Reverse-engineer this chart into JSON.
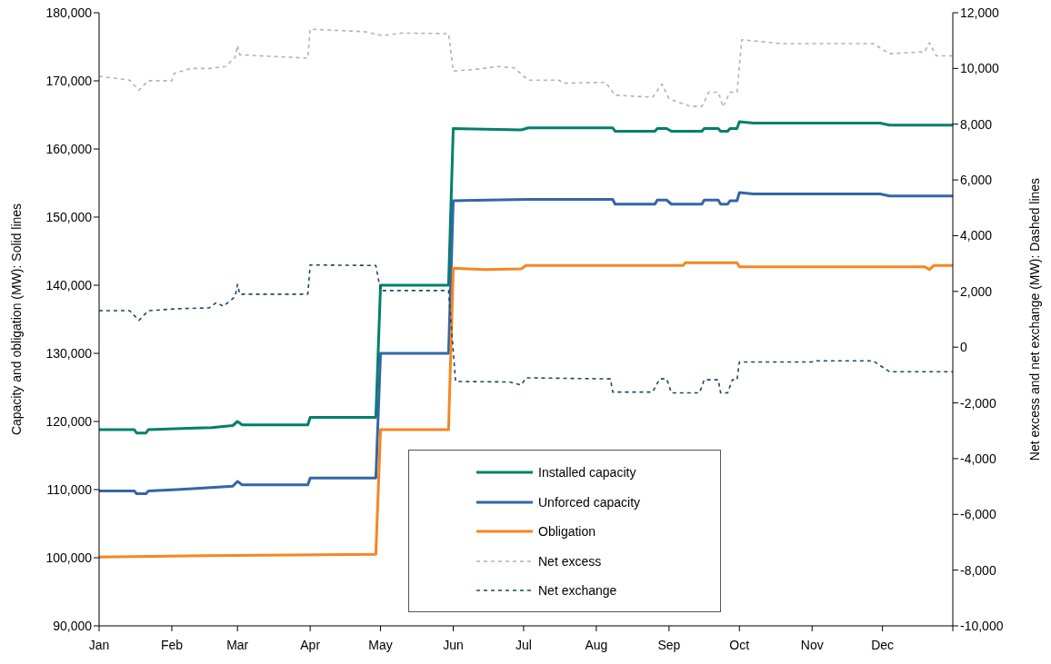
{
  "chart_data": {
    "type": "line",
    "ylabel": "Capacity and obligation (MW):  Solid lines",
    "y2label": "Net excess and net exchange (MW):  Dashed lines",
    "xlim": [
      "--01-01",
      "--12-31"
    ],
    "xticks": [
      {
        "value": "--01-01",
        "label": "Jan"
      },
      {
        "value": "--02-01",
        "label": "Feb"
      },
      {
        "value": "--03-01",
        "label": "Mar"
      },
      {
        "value": "--04-01",
        "label": "Apr"
      },
      {
        "value": "--05-01",
        "label": "May"
      },
      {
        "value": "--06-01",
        "label": "Jun"
      },
      {
        "value": "--07-01",
        "label": "Jul"
      },
      {
        "value": "--08-01",
        "label": "Aug"
      },
      {
        "value": "--09-01",
        "label": "Sep"
      },
      {
        "value": "--10-01",
        "label": "Oct"
      },
      {
        "value": "--11-01",
        "label": "Nov"
      },
      {
        "value": "--12-01",
        "label": "Dec"
      },
      {
        "value": "--12-31",
        "label": null
      }
    ],
    "ylim": [
      90000,
      180000
    ],
    "yticks": [
      {
        "value": 90000,
        "label": "90,000"
      },
      {
        "value": 100000,
        "label": "100,000"
      },
      {
        "value": 110000,
        "label": "110,000"
      },
      {
        "value": 120000,
        "label": "120,000"
      },
      {
        "value": 130000,
        "label": "130,000"
      },
      {
        "value": 140000,
        "label": "140,000"
      },
      {
        "value": 150000,
        "label": "150,000"
      },
      {
        "value": 160000,
        "label": "160,000"
      },
      {
        "value": 170000,
        "label": "170,000"
      },
      {
        "value": 180000,
        "label": "180,000"
      }
    ],
    "y2lim": [
      -10000,
      12000
    ],
    "y2ticks": [
      {
        "value": -10000,
        "label": "-10,000"
      },
      {
        "value": -8000,
        "label": "-8,000"
      },
      {
        "value": -6000,
        "label": "-6,000"
      },
      {
        "value": -4000,
        "label": "-4,000"
      },
      {
        "value": -2000,
        "label": "-2,000"
      },
      0,
      {
        "value": 2000,
        "label": "2,000"
      },
      {
        "value": 4000,
        "label": "4,000"
      },
      {
        "value": 6000,
        "label": "6,000"
      },
      {
        "value": 8000,
        "label": "8,000"
      },
      {
        "value": 10000,
        "label": "10,000"
      },
      {
        "value": 12000,
        "label": "12,000"
      }
    ],
    "legend": "bottom",
    "marker": "none",
    "series": [
      {
        "name": "Installed capacity",
        "color": "#00806a",
        "line_style": "solid",
        "x": [
          "--01-01",
          "--01-16",
          "--01-17",
          "--01-21",
          "--01-22",
          "--02-08",
          "--02-18",
          "--02-27",
          "--03-01",
          "--03-03",
          "--03-31",
          "--04-01",
          "--04-29",
          "--05-01",
          "--05-30",
          "--06-01",
          "--06-30",
          "--07-03",
          "--08-08",
          "--08-09",
          "--08-26",
          "--08-27",
          "--08-31",
          "--09-02",
          "--09-15",
          "--09-16",
          "--09-22",
          "--09-23",
          "--09-26",
          "--09-27",
          "--09-30",
          "--10-01",
          "--10-07",
          "--11-30",
          "--12-04",
          "--12-31"
        ],
        "values": [
          118800,
          118800,
          118300,
          118300,
          118800,
          119000,
          119100,
          119400,
          120000,
          119500,
          119500,
          120600,
          120600,
          140000,
          140000,
          163000,
          162800,
          163100,
          163100,
          162600,
          162600,
          163000,
          163000,
          162600,
          162600,
          163000,
          163000,
          162600,
          162600,
          163000,
          163000,
          164000,
          163800,
          163800,
          163500,
          163500
        ]
      },
      {
        "name": "Unforced capacity",
        "color": "#3366a8",
        "line_style": "solid",
        "x": [
          "--01-01",
          "--01-16",
          "--01-17",
          "--01-21",
          "--01-22",
          "--02-03",
          "--02-13",
          "--02-27",
          "--03-01",
          "--03-03",
          "--03-31",
          "--04-01",
          "--04-29",
          "--05-01",
          "--05-30",
          "--06-01",
          "--07-03",
          "--08-08",
          "--08-09",
          "--08-26",
          "--08-27",
          "--08-31",
          "--09-02",
          "--09-15",
          "--09-16",
          "--09-22",
          "--09-23",
          "--09-26",
          "--09-27",
          "--09-30",
          "--10-01",
          "--10-07",
          "--11-30",
          "--12-04",
          "--12-31"
        ],
        "values": [
          109800,
          109800,
          109400,
          109400,
          109800,
          110000,
          110200,
          110500,
          111200,
          110700,
          110700,
          111700,
          111700,
          130000,
          130000,
          152400,
          152600,
          152600,
          151900,
          151900,
          152500,
          152500,
          151900,
          151900,
          152500,
          152500,
          151900,
          151900,
          152400,
          152400,
          153600,
          153400,
          153400,
          153100,
          153100
        ]
      },
      {
        "name": "Obligation",
        "color": "#f7861f",
        "line_style": "solid",
        "x": [
          "--01-01",
          "--02-15",
          "--04-29",
          "--05-01",
          "--05-30",
          "--06-01",
          "--06-15",
          "--06-30",
          "--07-02",
          "--09-07",
          "--09-08",
          "--09-30",
          "--10-01",
          "--12-19",
          "--12-21",
          "--12-23",
          "--12-31"
        ],
        "values": [
          100100,
          100300,
          100500,
          118800,
          118800,
          142500,
          142300,
          142400,
          142900,
          142900,
          143300,
          143300,
          142700,
          142700,
          142300,
          142900,
          142900
        ]
      },
      {
        "name": "Net excess",
        "color": "#b3b3b3",
        "line_style": "dashed",
        "axis": "y2",
        "x": [
          "--01-01",
          "--01-14",
          "--01-18",
          "--01-22",
          "--02-01",
          "--02-02",
          "--02-09",
          "--02-17",
          "--02-24",
          "--02-28",
          "--03-01",
          "--03-02",
          "--03-31",
          "--04-01",
          "--04-24",
          "--05-02",
          "--05-10",
          "--05-30",
          "--06-01",
          "--06-10",
          "--06-20",
          "--06-27",
          "--07-03",
          "--07-16",
          "--07-18",
          "--08-05",
          "--08-09",
          "--08-25",
          "--08-29",
          "--09-01",
          "--09-10",
          "--09-15",
          "--09-18",
          "--09-22",
          "--09-24",
          "--09-27",
          "--09-30",
          "--10-02",
          "--10-19",
          "--11-27",
          "--12-04",
          "--12-19",
          "--12-21",
          "--12-24",
          "--12-31"
        ],
        "values": [
          9720,
          9580,
          9220,
          9560,
          9560,
          9820,
          10000,
          10000,
          10070,
          10400,
          10830,
          10490,
          10370,
          11410,
          11320,
          11180,
          11270,
          11250,
          9910,
          9960,
          10070,
          10020,
          9580,
          9580,
          9470,
          9500,
          9040,
          8970,
          9440,
          8910,
          8640,
          8640,
          9150,
          9150,
          8620,
          9150,
          9150,
          11030,
          10890,
          10890,
          10530,
          10600,
          10920,
          10450,
          10450
        ]
      },
      {
        "name": "Net exchange",
        "color": "#1b4a66",
        "line_style": "dashed",
        "axis": "y2",
        "x": [
          "--01-01",
          "--01-14",
          "--01-18",
          "--01-22",
          "--02-04",
          "--02-17",
          "--02-20",
          "--02-23",
          "--02-28",
          "--03-01",
          "--03-02",
          "--03-31",
          "--04-01",
          "--04-29",
          "--05-01",
          "--05-30",
          "--06-02",
          "--06-25",
          "--06-30",
          "--07-02",
          "--08-07",
          "--08-08",
          "--08-25",
          "--08-28",
          "--08-31",
          "--09-02",
          "--09-14",
          "--09-16",
          "--09-22",
          "--09-23",
          "--09-26",
          "--09-28",
          "--09-30",
          "--10-01",
          "--11-01",
          "--11-02",
          "--11-27",
          "--12-04",
          "--12-31"
        ],
        "values": [
          1310,
          1310,
          960,
          1310,
          1380,
          1410,
          1600,
          1470,
          1810,
          2250,
          1900,
          1900,
          2950,
          2930,
          2030,
          2030,
          -1230,
          -1250,
          -1360,
          -1100,
          -1140,
          -1610,
          -1610,
          -1140,
          -1140,
          -1640,
          -1640,
          -1170,
          -1170,
          -1640,
          -1640,
          -1170,
          -1170,
          -530,
          -530,
          -490,
          -490,
          -880,
          -880
        ]
      }
    ]
  }
}
